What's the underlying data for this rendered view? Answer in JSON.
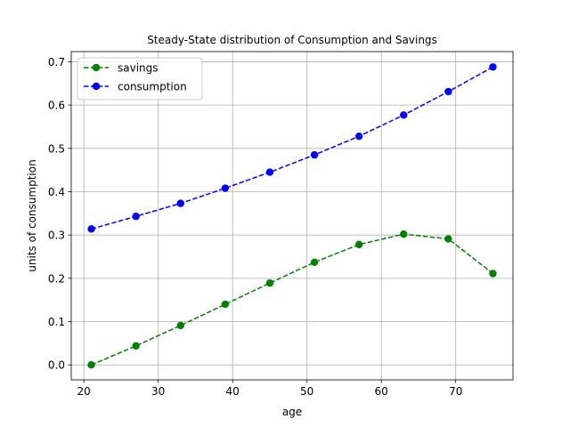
{
  "chart_data": {
    "type": "line",
    "title": "Steady-State distribution of Consumption and Savings",
    "xlabel": "age",
    "ylabel": "units of consumption",
    "xlim": [
      18.3,
      77.7
    ],
    "ylim": [
      -0.0345,
      0.7235
    ],
    "xticks": [
      20,
      30,
      40,
      50,
      60,
      70
    ],
    "yticks": [
      0.0,
      0.1,
      0.2,
      0.3,
      0.4,
      0.5,
      0.6,
      0.7
    ],
    "xtick_labels": [
      "20",
      "30",
      "40",
      "50",
      "60",
      "70"
    ],
    "ytick_labels": [
      "0.0",
      "0.1",
      "0.2",
      "0.3",
      "0.4",
      "0.5",
      "0.6",
      "0.7"
    ],
    "grid": true,
    "legend_position": "top-left",
    "x": [
      21,
      27,
      33,
      39,
      45,
      51,
      57,
      63,
      69,
      75
    ],
    "series": [
      {
        "name": "savings",
        "color": "#008000",
        "linestyle": "dashed",
        "marker": "circle",
        "values": [
          0.0,
          0.044,
          0.091,
          0.14,
          0.189,
          0.237,
          0.278,
          0.302,
          0.291,
          0.211
        ]
      },
      {
        "name": "consumption",
        "color": "#0000ff",
        "linestyle": "dashed",
        "marker": "circle",
        "values": [
          0.314,
          0.343,
          0.373,
          0.408,
          0.445,
          0.485,
          0.528,
          0.577,
          0.631,
          0.688
        ]
      }
    ]
  }
}
